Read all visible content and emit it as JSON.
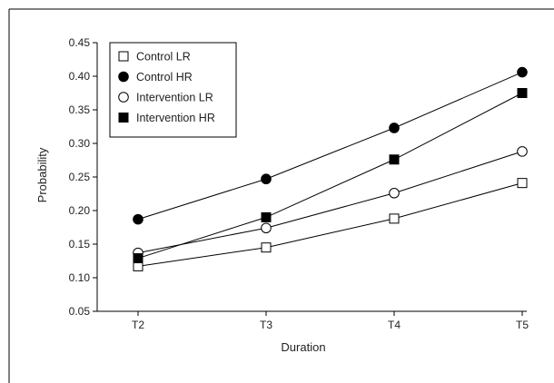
{
  "chart_data": {
    "type": "line",
    "title": "",
    "xlabel": "Duration",
    "ylabel": "Probability",
    "categories": [
      "T2",
      "T3",
      "T4",
      "T5"
    ],
    "ylim": [
      0.05,
      0.45
    ],
    "yticks": [
      "0.05",
      "0.10",
      "0.15",
      "0.20",
      "0.25",
      "0.30",
      "0.35",
      "0.40",
      "0.45"
    ],
    "grid": false,
    "legend_position": "top-left",
    "series": [
      {
        "name": "Control LR",
        "marker": "square-open",
        "values": [
          0.117,
          0.145,
          0.188,
          0.241
        ]
      },
      {
        "name": "Control HR",
        "marker": "circle-filled",
        "values": [
          0.187,
          0.247,
          0.323,
          0.406
        ]
      },
      {
        "name": "Intervention LR",
        "marker": "circle-open",
        "values": [
          0.137,
          0.174,
          0.226,
          0.288
        ]
      },
      {
        "name": "Intervention HR",
        "marker": "square-filled",
        "values": [
          0.129,
          0.19,
          0.276,
          0.375
        ]
      }
    ],
    "colors": {
      "line": "#000000",
      "marker_fill": "#000000",
      "marker_open_fill": "#ffffff"
    }
  }
}
